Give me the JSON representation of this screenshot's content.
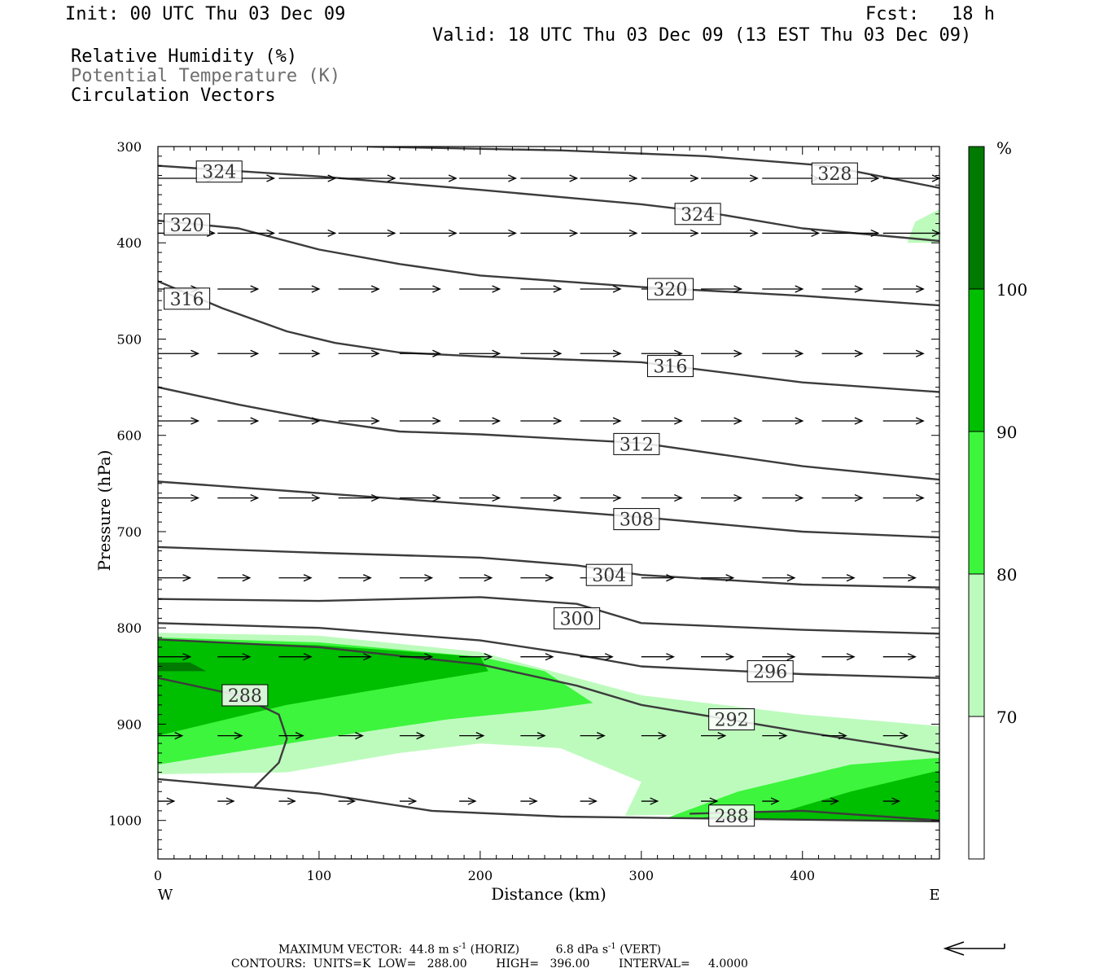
{
  "header": {
    "init": "Init: 00 UTC Thu 03 Dec 09",
    "fcst": "Fcst:   18 h",
    "valid": "Valid: 18 UTC Thu 03 Dec 09 (13 EST Thu 03 Dec 09)",
    "fields": [
      "Relative Humidity (%)",
      "Potential Temperature (K)",
      "Circulation Vectors"
    ]
  },
  "footer": {
    "max_vector_label": "MAXIMUM VECTOR:",
    "horiz_value": "44.8 m s",
    "horiz_unit_label": "(HORIZ)",
    "vert_value": "6.8 dPa s",
    "vert_unit_label": "(VERT)",
    "exponent": "-1",
    "contours_line": "CONTOURS:  UNITS=K  LOW=   288.00        HIGH=   396.00        INTERVAL=     4.0000"
  },
  "colors": {
    "rh_70_80": "#bdfbbd",
    "rh_80_90": "#3cf53c",
    "rh_90_100": "#00be00",
    "rh_100": "#007a00",
    "contour": "#3c3c3c",
    "vector": "#000000"
  },
  "chart_data": {
    "type": "cross-section",
    "xlabel": "Distance (km)",
    "ylabel": "Pressure (hPa)",
    "x_range": [
      0,
      485
    ],
    "y_range": [
      300,
      1040
    ],
    "y_scale": "linear-inverted",
    "x_ticks": [
      "0",
      "100",
      "200",
      "300",
      "400"
    ],
    "y_ticks": [
      "300",
      "400",
      "500",
      "600",
      "700",
      "800",
      "900",
      "1000"
    ],
    "x_end_labels": {
      "left": "W",
      "right": "E"
    },
    "colorbar": {
      "unit": "%",
      "levels": [
        "70",
        "80",
        "90",
        "100"
      ]
    },
    "isentropes": [
      {
        "label": "328",
        "label_at": [
          420,
          328
        ],
        "points": [
          [
            130,
            300
          ],
          [
            250,
            304
          ],
          [
            340,
            310
          ],
          [
            415,
            320
          ],
          [
            485,
            343
          ]
        ]
      },
      {
        "label": "324",
        "label_at": [
          38,
          326
        ],
        "points": [
          [
            0,
            320
          ],
          [
            100,
            331
          ],
          [
            200,
            345
          ],
          [
            300,
            360
          ],
          [
            340,
            368
          ],
          [
            400,
            385
          ],
          [
            485,
            398
          ]
        ]
      },
      {
        "label": "324",
        "label_at": [
          335,
          370
        ],
        "points": []
      },
      {
        "label": "320",
        "label_at": [
          18,
          381
        ],
        "points": [
          [
            0,
            377
          ],
          [
            50,
            385
          ],
          [
            100,
            407
          ],
          [
            150,
            422
          ],
          [
            200,
            434
          ],
          [
            300,
            446
          ],
          [
            400,
            455
          ],
          [
            485,
            465
          ]
        ]
      },
      {
        "label": "320",
        "label_at": [
          318,
          448
        ],
        "points": []
      },
      {
        "label": "316",
        "label_at": [
          18,
          458
        ],
        "points": [
          [
            0,
            440
          ],
          [
            40,
            468
          ],
          [
            80,
            492
          ],
          [
            110,
            504
          ],
          [
            150,
            514
          ],
          [
            200,
            518
          ],
          [
            300,
            524
          ],
          [
            400,
            545
          ],
          [
            485,
            555
          ]
        ]
      },
      {
        "label": "316",
        "label_at": [
          318,
          528
        ],
        "points": []
      },
      {
        "label": "312",
        "label_at": [
          297,
          609
        ],
        "points": [
          [
            0,
            550
          ],
          [
            50,
            568
          ],
          [
            100,
            584
          ],
          [
            150,
            596
          ],
          [
            200,
            599
          ],
          [
            300,
            608
          ],
          [
            400,
            632
          ],
          [
            485,
            646
          ]
        ]
      },
      {
        "label": "308",
        "label_at": [
          297,
          687
        ],
        "points": [
          [
            0,
            648
          ],
          [
            100,
            660
          ],
          [
            200,
            672
          ],
          [
            300,
            685
          ],
          [
            400,
            700
          ],
          [
            485,
            706
          ]
        ]
      },
      {
        "label": "304",
        "label_at": [
          280,
          745
        ],
        "points": [
          [
            0,
            716
          ],
          [
            100,
            722
          ],
          [
            200,
            727
          ],
          [
            260,
            735
          ],
          [
            300,
            745
          ],
          [
            400,
            755
          ],
          [
            485,
            758
          ]
        ]
      },
      {
        "label": "300",
        "label_at": [
          260,
          790
        ],
        "points": [
          [
            0,
            770
          ],
          [
            100,
            772
          ],
          [
            200,
            768
          ],
          [
            260,
            775
          ],
          [
            300,
            795
          ],
          [
            400,
            802
          ],
          [
            485,
            806
          ]
        ]
      },
      {
        "label": "296",
        "label_at": [
          380,
          845
        ],
        "points": [
          [
            0,
            795
          ],
          [
            100,
            800
          ],
          [
            200,
            813
          ],
          [
            260,
            828
          ],
          [
            300,
            840
          ],
          [
            400,
            848
          ],
          [
            485,
            852
          ]
        ]
      },
      {
        "label": "292",
        "label_at": [
          356,
          895
        ],
        "points": [
          [
            0,
            812
          ],
          [
            100,
            820
          ],
          [
            200,
            838
          ],
          [
            260,
            860
          ],
          [
            300,
            880
          ],
          [
            400,
            908
          ],
          [
            485,
            930
          ]
        ]
      },
      {
        "label": "288",
        "label_at": [
          54,
          870
        ],
        "points": [
          [
            0,
            852
          ],
          [
            50,
            870
          ],
          [
            75,
            890
          ],
          [
            80,
            915
          ],
          [
            75,
            940
          ],
          [
            60,
            965
          ]
        ]
      },
      {
        "label": "288",
        "label_at": [
          356,
          995
        ],
        "points": [
          [
            330,
            993
          ],
          [
            400,
            990
          ],
          [
            485,
            1000
          ]
        ]
      },
      {
        "label": "",
        "label_at": null,
        "points": [
          [
            0,
            957
          ],
          [
            100,
            972
          ],
          [
            170,
            990
          ],
          [
            250,
            996
          ],
          [
            485,
            1001
          ]
        ]
      }
    ],
    "rh_regions": [
      {
        "level": ">=70",
        "points": [
          [
            0,
            805
          ],
          [
            100,
            808
          ],
          [
            200,
            825
          ],
          [
            300,
            870
          ],
          [
            350,
            880
          ],
          [
            400,
            890
          ],
          [
            485,
            902
          ],
          [
            485,
            990
          ],
          [
            290,
            995
          ],
          [
            300,
            960
          ],
          [
            250,
            925
          ],
          [
            200,
            920
          ],
          [
            150,
            930
          ],
          [
            80,
            950
          ],
          [
            0,
            952
          ]
        ]
      },
      {
        "level": ">=70",
        "points": [
          [
            465,
            400
          ],
          [
            470,
            378
          ],
          [
            485,
            365
          ],
          [
            485,
            400
          ]
        ]
      },
      {
        "level": ">=80",
        "points": [
          [
            0,
            810
          ],
          [
            100,
            815
          ],
          [
            200,
            830
          ],
          [
            240,
            845
          ],
          [
            270,
            878
          ],
          [
            240,
            885
          ],
          [
            180,
            895
          ],
          [
            100,
            915
          ],
          [
            0,
            942
          ]
        ]
      },
      {
        "level": ">=80",
        "points": [
          [
            315,
            998
          ],
          [
            360,
            970
          ],
          [
            430,
            942
          ],
          [
            485,
            935
          ],
          [
            485,
            1000
          ]
        ]
      },
      {
        "level": ">=90",
        "points": [
          [
            0,
            813
          ],
          [
            100,
            818
          ],
          [
            200,
            830
          ],
          [
            205,
            845
          ],
          [
            150,
            860
          ],
          [
            80,
            880
          ],
          [
            0,
            912
          ]
        ]
      },
      {
        "level": ">=90",
        "points": [
          [
            330,
            998
          ],
          [
            390,
            990
          ],
          [
            430,
            970
          ],
          [
            485,
            948
          ],
          [
            485,
            1000
          ]
        ]
      },
      {
        "level": "100",
        "points": [
          [
            0,
            836
          ],
          [
            20,
            836
          ],
          [
            30,
            845
          ],
          [
            0,
            845
          ]
        ]
      }
    ],
    "vectors": [
      {
        "p": 333,
        "x0": [
          0,
          37,
          75,
          112,
          150,
          187,
          225,
          262,
          300,
          337,
          375,
          412,
          450
        ],
        "dx": 35
      },
      {
        "p": 390,
        "x0": [
          0,
          37,
          75,
          112,
          150,
          187,
          225,
          262,
          300,
          337,
          375,
          412,
          450
        ],
        "dx": 35
      },
      {
        "p": 448,
        "x0": [
          0,
          37,
          75,
          112,
          150,
          187,
          225,
          262,
          300,
          337,
          375,
          412,
          450
        ],
        "dx": 25
      },
      {
        "p": 515,
        "x0": [
          0,
          37,
          75,
          112,
          150,
          187,
          225,
          262,
          300,
          337,
          375,
          412,
          450
        ],
        "dx": 25
      },
      {
        "p": 585,
        "x0": [
          0,
          37,
          75,
          112,
          150,
          187,
          225,
          262,
          300,
          337,
          375,
          412,
          450
        ],
        "dx": 25
      },
      {
        "p": 665,
        "x0": [
          0,
          37,
          75,
          112,
          150,
          187,
          225,
          262,
          300,
          337,
          375,
          412,
          450
        ],
        "dx": 25
      },
      {
        "p": 748,
        "x0": [
          0,
          37,
          75,
          112,
          150,
          187,
          225,
          262,
          300,
          337,
          375,
          412,
          450
        ],
        "dx": 20
      },
      {
        "p": 830,
        "x0": [
          0,
          37,
          75,
          112,
          150,
          187,
          225,
          262,
          300,
          337,
          375,
          412,
          450
        ],
        "dx": 20
      },
      {
        "p": 912,
        "x0": [
          0,
          37,
          75,
          112,
          150,
          187,
          225,
          262,
          300,
          337,
          375,
          412,
          450
        ],
        "dx": 15
      },
      {
        "p": 980,
        "x0": [
          0,
          37,
          75,
          112,
          150,
          187,
          225,
          262,
          300,
          337,
          375,
          412,
          450
        ],
        "dx": 10
      }
    ]
  }
}
